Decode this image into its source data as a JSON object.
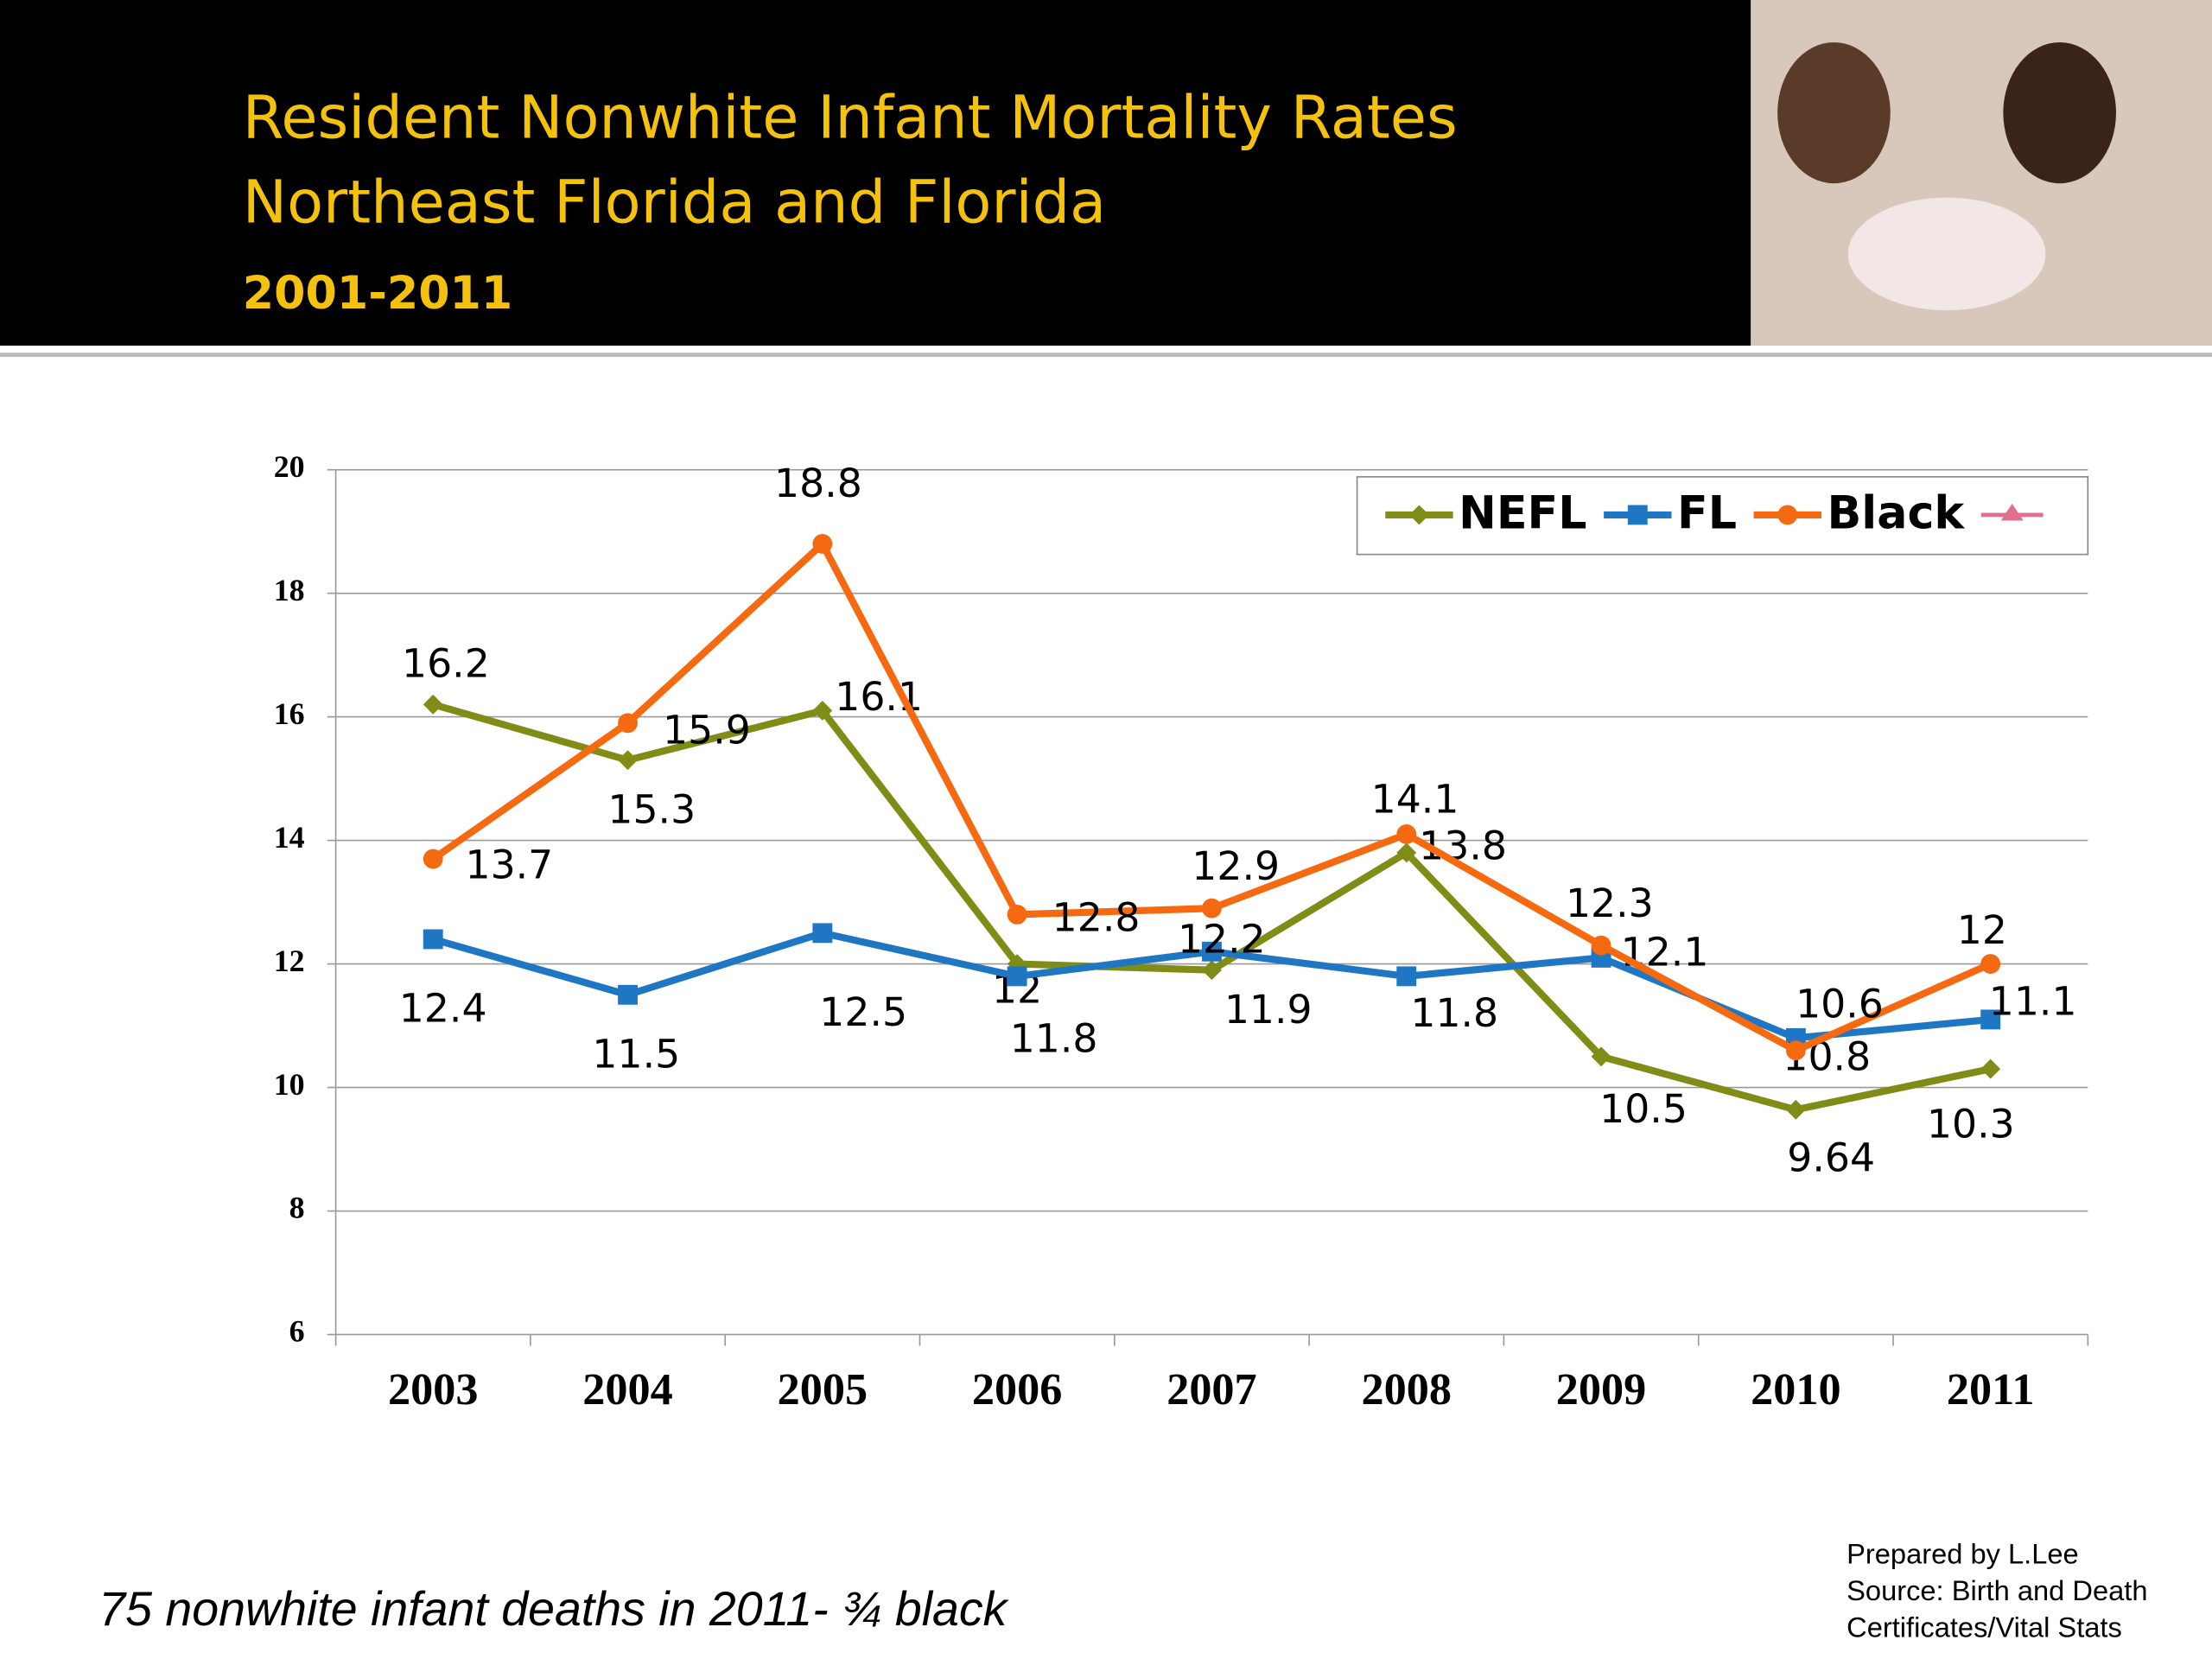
{
  "header": {
    "title_lines": [
      "Resident Nonwhite Infant Mortality Rates",
      "Northeast Florida and Florida"
    ],
    "subtitle": "2001-2011"
  },
  "chart_data": {
    "type": "line",
    "categories": [
      "2003",
      "2004",
      "2005",
      "2006",
      "2007",
      "2008",
      "2009",
      "2010",
      "2011"
    ],
    "series": [
      {
        "name": "NEFL",
        "color": "#7f8c16",
        "marker": "diamond",
        "values": [
          16.2,
          15.3,
          16.1,
          12,
          11.9,
          13.8,
          10.5,
          9.64,
          10.3
        ]
      },
      {
        "name": "FL",
        "color": "#1f77c4",
        "marker": "square",
        "values": [
          12.4,
          11.5,
          12.5,
          11.8,
          12.2,
          11.8,
          12.1,
          10.8,
          11.1
        ]
      },
      {
        "name": "Black",
        "color": "#f56a10",
        "marker": "circle",
        "values": [
          13.7,
          15.9,
          18.8,
          12.8,
          12.9,
          14.1,
          12.3,
          10.6,
          12
        ]
      }
    ],
    "ylim": [
      6,
      20
    ],
    "yticks": [
      6,
      8,
      10,
      12,
      14,
      16,
      18,
      20
    ],
    "grid": true,
    "legend": "top-right"
  },
  "footnote": "75 nonwhite infant deaths in 2011- ¾ black",
  "credits": [
    "Prepared by L.Lee",
    "Source: Birth and Death",
    "Certificates/Vital Stats"
  ]
}
